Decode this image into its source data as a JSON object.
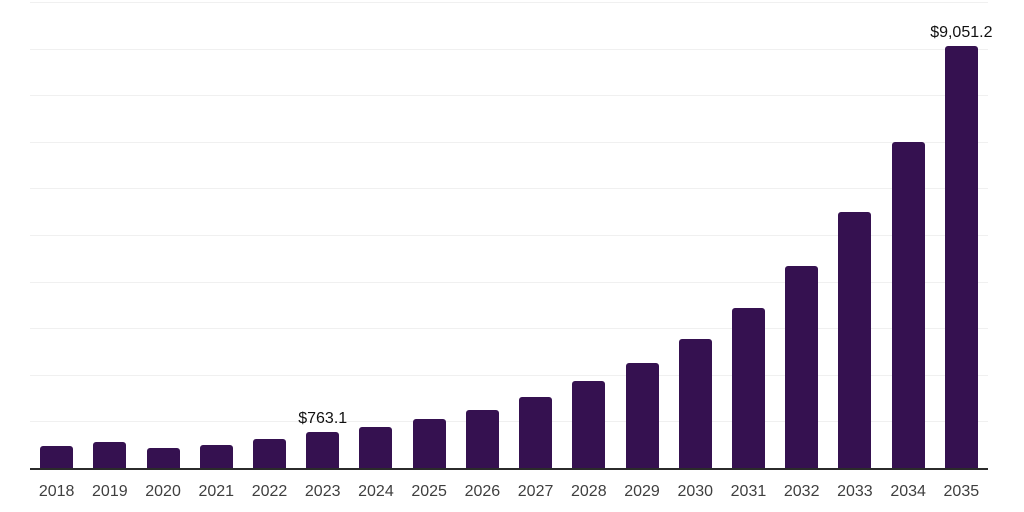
{
  "chart_data": {
    "type": "bar",
    "categories": [
      "2018",
      "2019",
      "2020",
      "2021",
      "2022",
      "2023",
      "2024",
      "2025",
      "2026",
      "2027",
      "2028",
      "2029",
      "2030",
      "2031",
      "2032",
      "2033",
      "2034",
      "2035"
    ],
    "values": [
      480,
      565,
      430,
      505,
      630,
      763.1,
      890,
      1045,
      1255,
      1520,
      1860,
      2260,
      2775,
      3445,
      4345,
      5490,
      7000,
      9051.2
    ],
    "data_labels": [
      {
        "index": 5,
        "text": "$763.1"
      },
      {
        "index": 17,
        "text": "$9,051.2"
      }
    ],
    "ylim": [
      0,
      10000
    ],
    "gridline_step": 1000,
    "grid": true,
    "legend": false,
    "y_axis_tick_labels_visible": false
  },
  "colors": {
    "bar": "#351150",
    "axis_line": "#2b2b2b",
    "gridline": "#f0f0f0",
    "tick_label": "#3f3f3f",
    "data_label": "#111111",
    "background": "#ffffff"
  }
}
